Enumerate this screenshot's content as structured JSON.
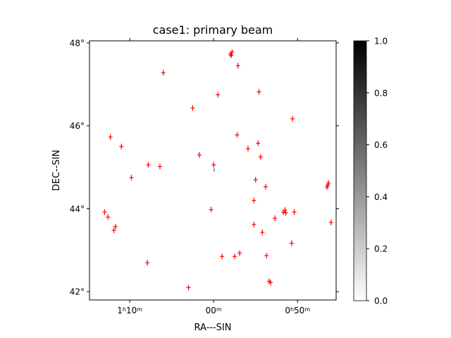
{
  "chart_data": {
    "type": "scatter",
    "title": "case1: primary beam",
    "xlabel": "RA---SIN",
    "ylabel": "DEC--SIN",
    "x_unit": "RA minutes (offset from 1h00m)",
    "x_ticks": [
      {
        "value": 10,
        "label_main": "1",
        "label_sup1": "h",
        "label_mid": "10",
        "label_sup2": "m"
      },
      {
        "value": 0,
        "label_main": "00",
        "label_sup1": "",
        "label_mid": "",
        "label_sup2": "m"
      },
      {
        "value": -10,
        "label_main": "0",
        "label_sup1": "h",
        "label_mid": "50",
        "label_sup2": "m"
      }
    ],
    "y_ticks": [
      {
        "value": 48,
        "label": "48°"
      },
      {
        "value": 46,
        "label": "46°"
      },
      {
        "value": 44,
        "label": "44°"
      },
      {
        "value": 42,
        "label": "42°"
      }
    ],
    "xlim": [
      14.8,
      -14.6
    ],
    "ylim": [
      41.8,
      48.05
    ],
    "grid": false,
    "colorbar": {
      "min": 0.0,
      "max": 1.0,
      "colormap": "gray_r",
      "ticks": [
        "0.0",
        "0.2",
        "0.4",
        "0.6",
        "0.8",
        "1.0"
      ]
    },
    "marker_color": "#ff0000",
    "points": [
      {
        "ra": -2.2,
        "dec": 47.78
      },
      {
        "ra": -2.0,
        "dec": 47.73
      },
      {
        "ra": -2.1,
        "dec": 47.7
      },
      {
        "ra": -2.9,
        "dec": 47.45
      },
      {
        "ra": 6.0,
        "dec": 47.28
      },
      {
        "ra": -5.4,
        "dec": 46.82
      },
      {
        "ra": -0.5,
        "dec": 46.75
      },
      {
        "ra": 2.5,
        "dec": 46.43
      },
      {
        "ra": -9.4,
        "dec": 46.17
      },
      {
        "ra": -2.8,
        "dec": 45.78
      },
      {
        "ra": 12.3,
        "dec": 45.73
      },
      {
        "ra": -5.3,
        "dec": 45.58
      },
      {
        "ra": 11.0,
        "dec": 45.5
      },
      {
        "ra": -4.1,
        "dec": 45.45
      },
      {
        "ra": 1.7,
        "dec": 45.3
      },
      {
        "ra": -5.6,
        "dec": 45.25
      },
      {
        "ra": 7.8,
        "dec": 45.06
      },
      {
        "ra": 0.0,
        "dec": 45.06
      },
      {
        "ra": 6.4,
        "dec": 45.02
      },
      {
        "ra": 9.8,
        "dec": 44.75
      },
      {
        "ra": -5.0,
        "dec": 44.7
      },
      {
        "ra": -6.2,
        "dec": 44.53
      },
      {
        "ra": -13.6,
        "dec": 44.57
      },
      {
        "ra": -13.5,
        "dec": 44.52
      },
      {
        "ra": -13.7,
        "dec": 44.62
      },
      {
        "ra": -4.8,
        "dec": 44.2
      },
      {
        "ra": 0.3,
        "dec": 43.98
      },
      {
        "ra": 13.0,
        "dec": 43.92
      },
      {
        "ra": -8.5,
        "dec": 43.97
      },
      {
        "ra": -8.6,
        "dec": 43.9
      },
      {
        "ra": -8.3,
        "dec": 43.92
      },
      {
        "ra": -9.6,
        "dec": 43.92
      },
      {
        "ra": 12.6,
        "dec": 43.8
      },
      {
        "ra": -7.3,
        "dec": 43.77
      },
      {
        "ra": 11.7,
        "dec": 43.57
      },
      {
        "ra": 11.9,
        "dec": 43.48
      },
      {
        "ra": -14.0,
        "dec": 43.67
      },
      {
        "ra": -4.8,
        "dec": 43.62
      },
      {
        "ra": -5.8,
        "dec": 43.43
      },
      {
        "ra": -9.3,
        "dec": 43.17
      },
      {
        "ra": -3.1,
        "dec": 42.93
      },
      {
        "ra": -1.0,
        "dec": 42.85
      },
      {
        "ra": -2.5,
        "dec": 42.85
      },
      {
        "ra": -6.3,
        "dec": 42.87
      },
      {
        "ra": 7.9,
        "dec": 42.7
      },
      {
        "ra": -6.6,
        "dec": 42.25
      },
      {
        "ra": -6.8,
        "dec": 42.22
      },
      {
        "ra": 3.0,
        "dec": 42.1
      }
    ]
  }
}
